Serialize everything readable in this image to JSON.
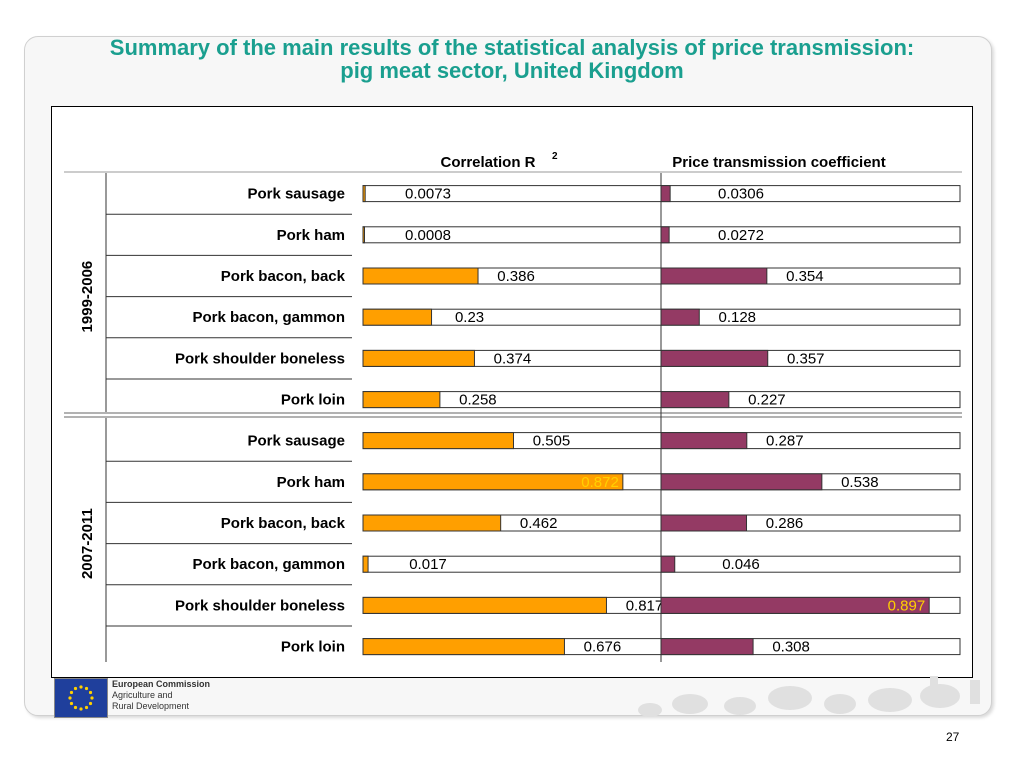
{
  "title_line1": "Summary of the main results of the statistical analysis of price transmission:",
  "title_line2": "pig meat sector, United Kingdom",
  "footer": {
    "org": "European Commission",
    "dept_line1": "Agriculture and",
    "dept_line2": "Rural Development"
  },
  "page_number": "27",
  "colors": {
    "title": "#1a9f8f",
    "correlation_bar": "#ff9f00",
    "coefficient_bar": "#943a64",
    "highlight_text": "#ffd000",
    "eu_flag": "#1f3f9c"
  },
  "chart_data": {
    "type": "bar",
    "orientation": "horizontal",
    "series": [
      {
        "name": "Correlation R",
        "superscript": "2",
        "xlim": [
          0,
          1
        ],
        "values": [
          0.0073,
          0.0008,
          0.386,
          0.23,
          0.374,
          0.258,
          0.505,
          0.872,
          0.462,
          0.017,
          0.817,
          0.676
        ],
        "labels": [
          "0.0073",
          "0.0008",
          "0.386",
          "0.23",
          "0.374",
          "0.258",
          "0.505",
          "0.872",
          "0.462",
          "0.017",
          "0.817",
          "0.676"
        ],
        "highlighted": [
          7
        ]
      },
      {
        "name": "Price transmission coefficient",
        "xlim": [
          0,
          1
        ],
        "values": [
          0.0306,
          0.0272,
          0.354,
          0.128,
          0.357,
          0.227,
          0.287,
          0.538,
          0.286,
          0.046,
          0.897,
          0.308
        ],
        "labels": [
          "0.0306",
          "0.0272",
          "0.354",
          "0.128",
          "0.357",
          "0.227",
          "0.287",
          "0.538",
          "0.286",
          "0.046",
          "0.897",
          "0.308"
        ],
        "highlighted": [
          10
        ]
      }
    ],
    "groups": [
      {
        "name": "1999-2006",
        "categories": [
          "Pork sausage",
          "Pork ham",
          "Pork bacon, back",
          "Pork bacon, gammon",
          "Pork shoulder boneless",
          "Pork loin"
        ]
      },
      {
        "name": "2007-2011",
        "categories": [
          "Pork sausage",
          "Pork ham",
          "Pork bacon, back",
          "Pork bacon, gammon",
          "Pork shoulder boneless",
          "Pork loin"
        ]
      }
    ]
  }
}
